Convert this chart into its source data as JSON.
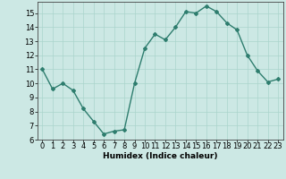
{
  "x": [
    0,
    1,
    2,
    3,
    4,
    5,
    6,
    7,
    8,
    9,
    10,
    11,
    12,
    13,
    14,
    15,
    16,
    17,
    18,
    19,
    20,
    21,
    22,
    23
  ],
  "y": [
    11,
    9.6,
    10,
    9.5,
    8.2,
    7.3,
    6.4,
    6.6,
    6.7,
    10,
    12.5,
    13.5,
    13.1,
    14.0,
    15.1,
    15.0,
    15.5,
    15.1,
    14.3,
    13.8,
    12.0,
    10.9,
    10.1,
    10.3
  ],
  "line_color": "#2e7d6e",
  "marker": "D",
  "marker_size": 2.0,
  "bg_color": "#cce8e4",
  "grid_color": "#aad4cc",
  "xlabel": "Humidex (Indice chaleur)",
  "ylim": [
    6,
    15.8
  ],
  "xlim": [
    -0.5,
    23.5
  ],
  "yticks": [
    6,
    7,
    8,
    9,
    10,
    11,
    12,
    13,
    14,
    15
  ],
  "xticks": [
    0,
    1,
    2,
    3,
    4,
    5,
    6,
    7,
    8,
    9,
    10,
    11,
    12,
    13,
    14,
    15,
    16,
    17,
    18,
    19,
    20,
    21,
    22,
    23
  ],
  "xlabel_fontsize": 6.5,
  "tick_fontsize": 6.0,
  "linewidth": 1.0
}
